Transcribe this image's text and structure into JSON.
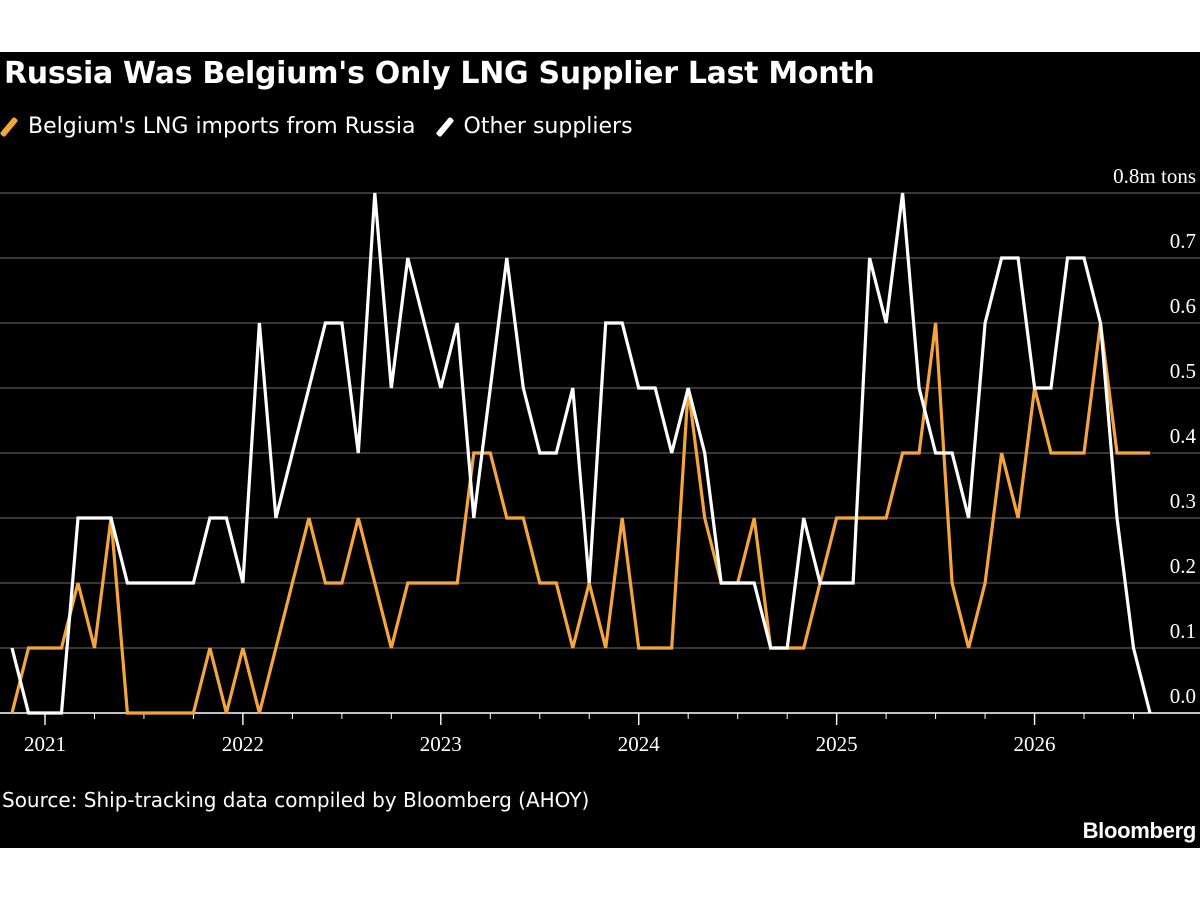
{
  "header": {
    "title": "Russia Was Belgium's Only LNG Supplier Last Month"
  },
  "footer": {
    "source": "Source: Ship-tracking data compiled by Bloomberg (AHOY)",
    "brand": "Bloomberg"
  },
  "colors": {
    "background": "#000000",
    "russia": "#F5A53E",
    "other": "#FFFFFF",
    "grid": "#6E6E6E",
    "axis": "#FFFFFF"
  },
  "chart_data": {
    "type": "line",
    "title": "Russia Was Belgium's Only LNG Supplier Last Month",
    "y_unit_label": "0.8m tons",
    "ylim": [
      0,
      0.8
    ],
    "y_ticks": [
      0.0,
      0.1,
      0.2,
      0.3,
      0.4,
      0.5,
      0.6,
      0.7,
      0.8
    ],
    "y_tick_labels": [
      "0.0",
      "0.1",
      "0.2",
      "0.3",
      "0.4",
      "0.5",
      "0.6",
      "0.7",
      "0.8m tons"
    ],
    "x_start": "2020-11",
    "x_end": "2026-08",
    "x_ticks": [
      "2021-01",
      "2022-01",
      "2023-01",
      "2024-01",
      "2025-01",
      "2026-01"
    ],
    "x_tick_labels": [
      "2021",
      "2022",
      "2023",
      "2024",
      "2025",
      "2026"
    ],
    "grid": true,
    "legend": "top-left",
    "series": [
      {
        "name": "Belgium's LNG imports from Russia",
        "color": "#F5A53E",
        "points": [
          [
            "2020-11",
            0.0
          ],
          [
            "2020-12",
            0.1
          ],
          [
            "2021-01",
            0.1
          ],
          [
            "2021-02",
            0.1
          ],
          [
            "2021-03",
            0.2
          ],
          [
            "2021-04",
            0.1
          ],
          [
            "2021-05",
            0.3
          ],
          [
            "2021-06",
            0.0
          ],
          [
            "2021-07",
            0.0
          ],
          [
            "2021-08",
            0.0
          ],
          [
            "2021-09",
            0.0
          ],
          [
            "2021-10",
            0.0
          ],
          [
            "2021-11",
            0.1
          ],
          [
            "2021-12",
            0.0
          ],
          [
            "2022-01",
            0.1
          ],
          [
            "2022-02",
            0.0
          ],
          [
            "2022-03",
            0.1
          ],
          [
            "2022-04",
            0.2
          ],
          [
            "2022-05",
            0.3
          ],
          [
            "2022-06",
            0.2
          ],
          [
            "2022-07",
            0.2
          ],
          [
            "2022-08",
            0.3
          ],
          [
            "2022-09",
            0.2
          ],
          [
            "2022-10",
            0.1
          ],
          [
            "2022-11",
            0.2
          ],
          [
            "2022-12",
            0.2
          ],
          [
            "2023-01",
            0.2
          ],
          [
            "2023-02",
            0.2
          ],
          [
            "2023-03",
            0.4
          ],
          [
            "2023-04",
            0.4
          ],
          [
            "2023-05",
            0.3
          ],
          [
            "2023-06",
            0.3
          ],
          [
            "2023-07",
            0.2
          ],
          [
            "2023-08",
            0.2
          ],
          [
            "2023-09",
            0.1
          ],
          [
            "2023-10",
            0.2
          ],
          [
            "2023-11",
            0.1
          ],
          [
            "2023-12",
            0.3
          ],
          [
            "2024-01",
            0.1
          ],
          [
            "2024-02",
            0.1
          ],
          [
            "2024-03",
            0.1
          ],
          [
            "2024-04",
            0.5
          ],
          [
            "2024-05",
            0.3
          ],
          [
            "2024-06",
            0.2
          ],
          [
            "2024-07",
            0.2
          ],
          [
            "2024-08",
            0.3
          ],
          [
            "2024-09",
            0.1
          ],
          [
            "2024-10",
            0.1
          ],
          [
            "2024-11",
            0.1
          ],
          [
            "2024-12",
            0.2
          ],
          [
            "2025-01",
            0.3
          ],
          [
            "2025-02",
            0.3
          ],
          [
            "2025-03",
            0.3
          ],
          [
            "2025-04",
            0.3
          ],
          [
            "2025-05",
            0.4
          ],
          [
            "2025-06",
            0.4
          ],
          [
            "2025-07",
            0.6
          ],
          [
            "2025-08",
            0.2
          ],
          [
            "2025-09",
            0.1
          ],
          [
            "2025-10",
            0.2
          ],
          [
            "2025-11",
            0.4
          ],
          [
            "2025-12",
            0.3
          ],
          [
            "2026-01",
            0.5
          ],
          [
            "2026-02",
            0.4
          ],
          [
            "2026-03",
            0.4
          ],
          [
            "2026-04",
            0.4
          ],
          [
            "2026-05",
            0.6
          ],
          [
            "2026-06",
            0.4
          ],
          [
            "2026-07",
            0.4
          ],
          [
            "2026-08",
            0.4
          ]
        ]
      },
      {
        "name": "Other suppliers",
        "color": "#FFFFFF",
        "points": [
          [
            "2020-11",
            0.1
          ],
          [
            "2020-12",
            0.0
          ],
          [
            "2021-01",
            0.0
          ],
          [
            "2021-02",
            0.0
          ],
          [
            "2021-03",
            0.3
          ],
          [
            "2021-04",
            0.3
          ],
          [
            "2021-05",
            0.3
          ],
          [
            "2021-06",
            0.2
          ],
          [
            "2021-07",
            0.2
          ],
          [
            "2021-08",
            0.2
          ],
          [
            "2021-09",
            0.2
          ],
          [
            "2021-10",
            0.2
          ],
          [
            "2021-11",
            0.3
          ],
          [
            "2021-12",
            0.3
          ],
          [
            "2022-01",
            0.2
          ],
          [
            "2022-02",
            0.6
          ],
          [
            "2022-03",
            0.3
          ],
          [
            "2022-04",
            0.4
          ],
          [
            "2022-05",
            0.5
          ],
          [
            "2022-06",
            0.6
          ],
          [
            "2022-07",
            0.6
          ],
          [
            "2022-08",
            0.4
          ],
          [
            "2022-09",
            0.8
          ],
          [
            "2022-10",
            0.5
          ],
          [
            "2022-11",
            0.7
          ],
          [
            "2022-12",
            0.6
          ],
          [
            "2023-01",
            0.5
          ],
          [
            "2023-02",
            0.6
          ],
          [
            "2023-03",
            0.3
          ],
          [
            "2023-04",
            0.5
          ],
          [
            "2023-05",
            0.7
          ],
          [
            "2023-06",
            0.5
          ],
          [
            "2023-07",
            0.4
          ],
          [
            "2023-08",
            0.4
          ],
          [
            "2023-09",
            0.5
          ],
          [
            "2023-10",
            0.2
          ],
          [
            "2023-11",
            0.6
          ],
          [
            "2023-12",
            0.6
          ],
          [
            "2024-01",
            0.5
          ],
          [
            "2024-02",
            0.5
          ],
          [
            "2024-03",
            0.4
          ],
          [
            "2024-04",
            0.5
          ],
          [
            "2024-05",
            0.4
          ],
          [
            "2024-06",
            0.2
          ],
          [
            "2024-07",
            0.2
          ],
          [
            "2024-08",
            0.2
          ],
          [
            "2024-09",
            0.1
          ],
          [
            "2024-10",
            0.1
          ],
          [
            "2024-11",
            0.3
          ],
          [
            "2024-12",
            0.2
          ],
          [
            "2025-01",
            0.2
          ],
          [
            "2025-02",
            0.2
          ],
          [
            "2025-03",
            0.7
          ],
          [
            "2025-04",
            0.6
          ],
          [
            "2025-05",
            0.8
          ],
          [
            "2025-06",
            0.5
          ],
          [
            "2025-07",
            0.4
          ],
          [
            "2025-08",
            0.4
          ],
          [
            "2025-09",
            0.3
          ],
          [
            "2025-10",
            0.6
          ],
          [
            "2025-11",
            0.7
          ],
          [
            "2025-12",
            0.7
          ],
          [
            "2026-01",
            0.5
          ],
          [
            "2026-02",
            0.5
          ],
          [
            "2026-03",
            0.7
          ],
          [
            "2026-04",
            0.7
          ],
          [
            "2026-05",
            0.6
          ],
          [
            "2026-06",
            0.3
          ],
          [
            "2026-07",
            0.1
          ],
          [
            "2026-08",
            0.0
          ]
        ]
      }
    ]
  }
}
